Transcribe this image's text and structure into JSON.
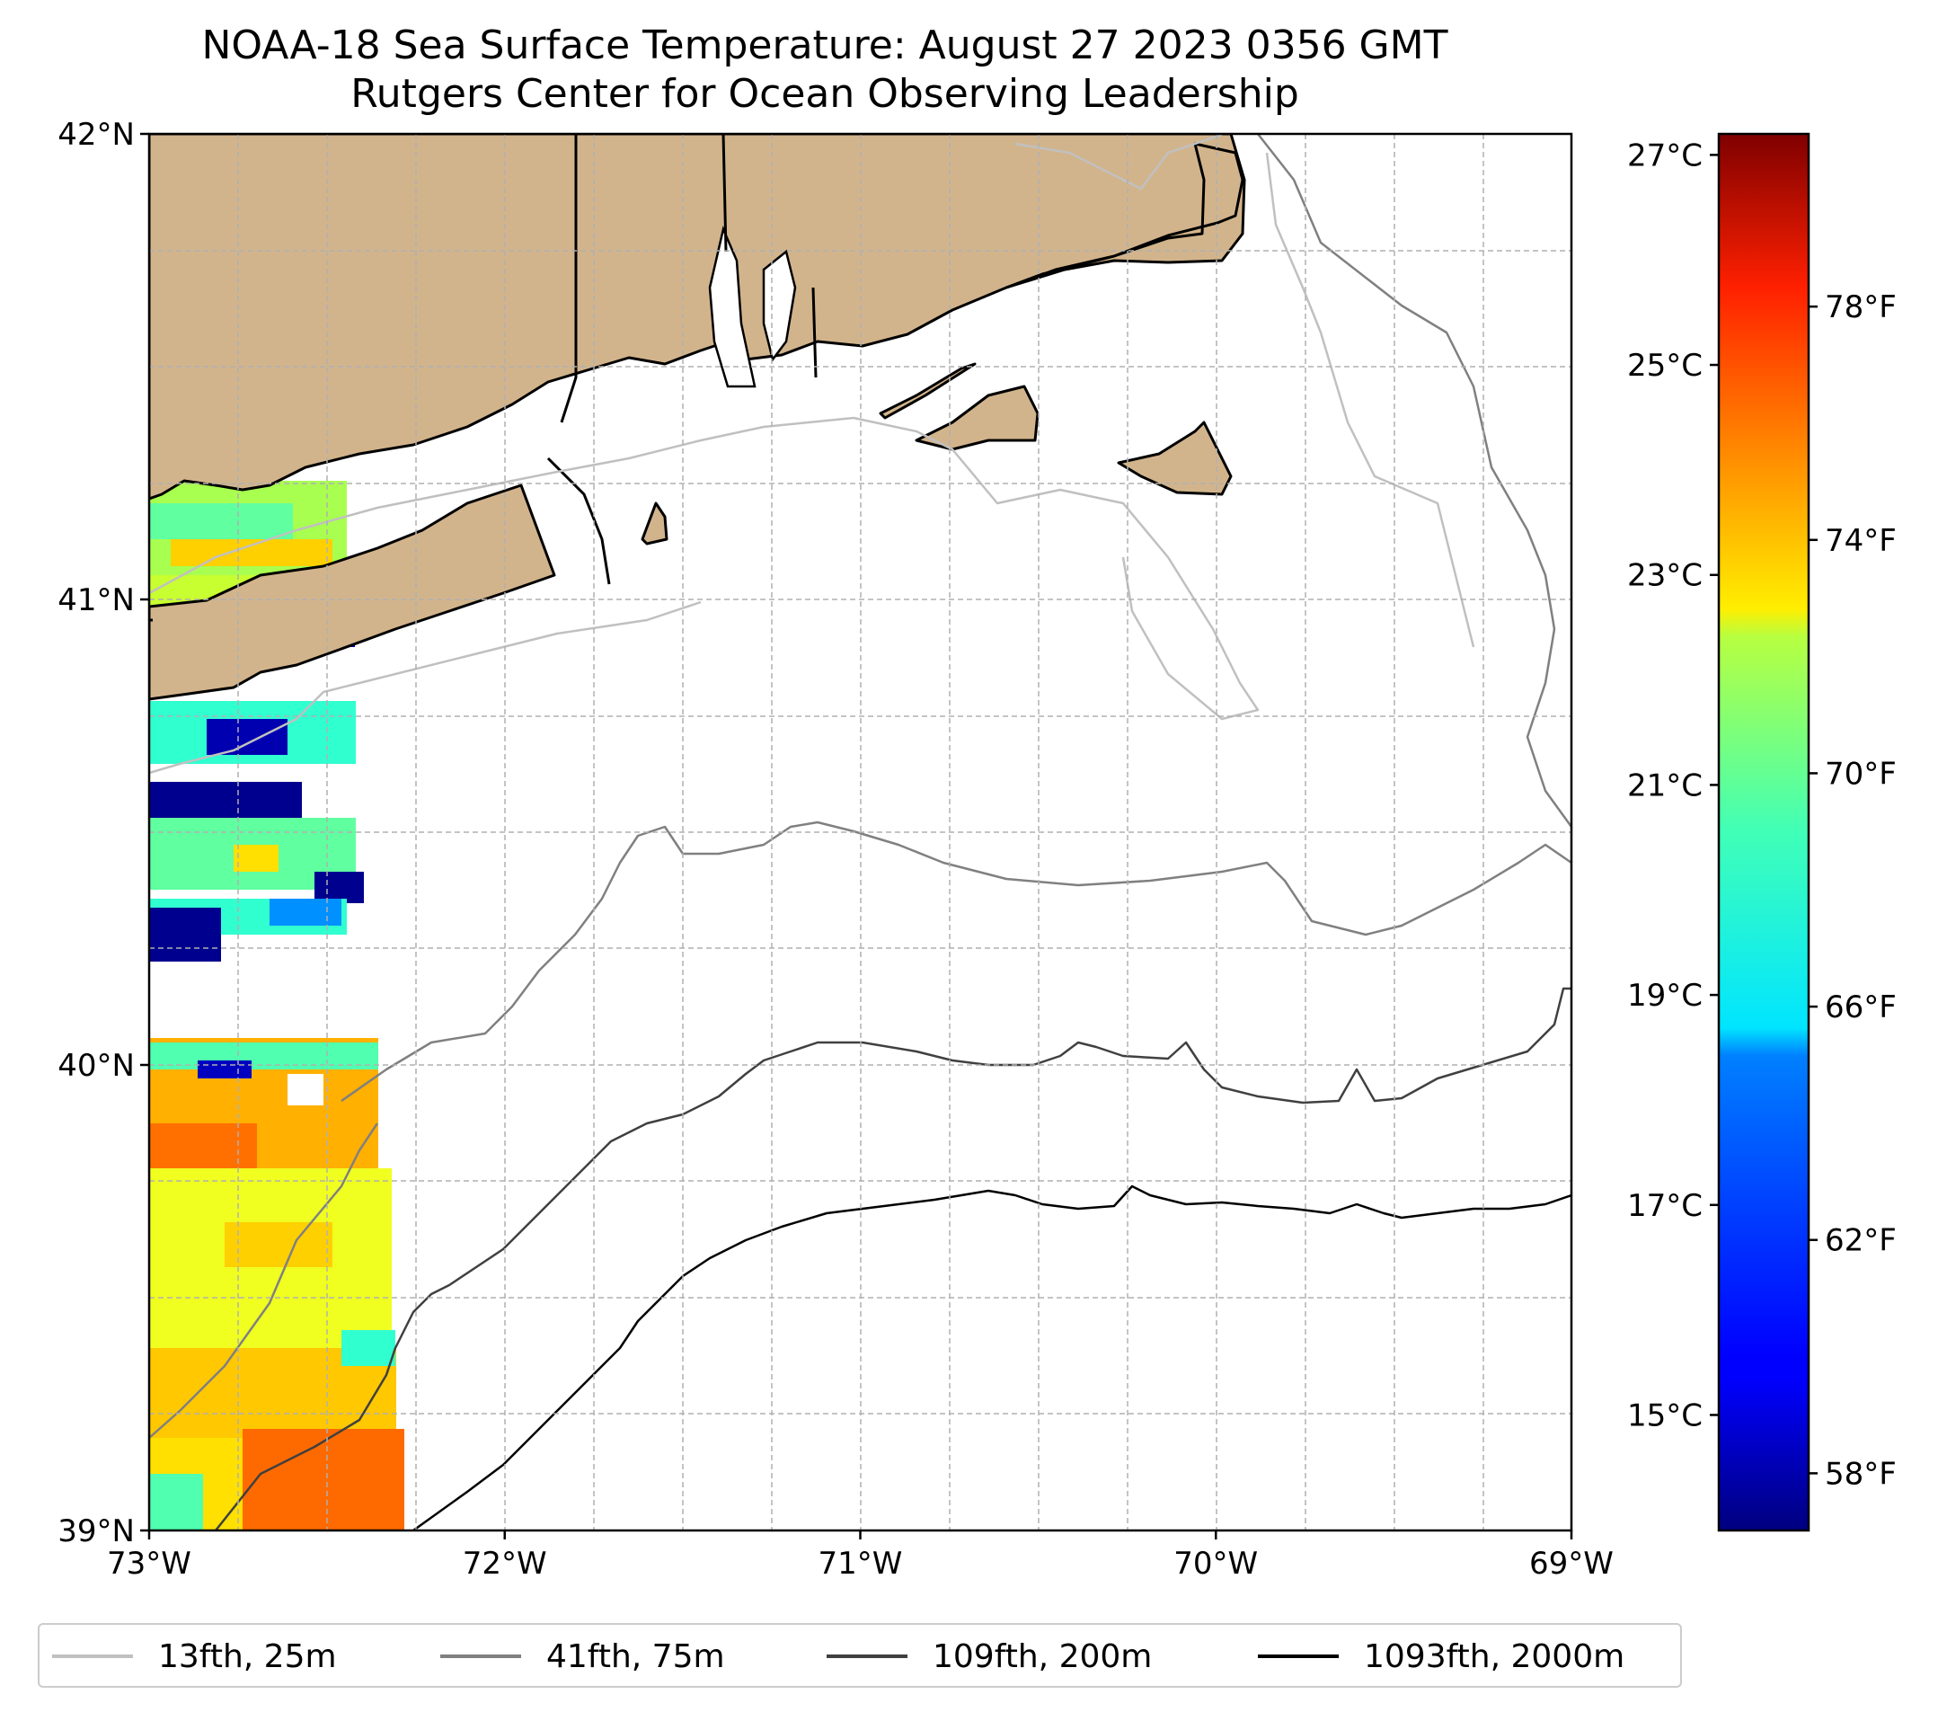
{
  "title": {
    "line1": "NOAA-18 Sea Surface Temperature: August 27 2023 0356 GMT",
    "line2": "Rutgers Center for Ocean Observing Leadership"
  },
  "axes": {
    "x_ticks": [
      "73°W",
      "72°W",
      "71°W",
      "70°W",
      "69°W"
    ],
    "y_ticks": [
      "39°N",
      "40°N",
      "41°N",
      "42°N"
    ],
    "lon_range": [
      -73,
      -69
    ],
    "lat_range": [
      39,
      42
    ],
    "grid": true
  },
  "colorbar": {
    "colormap": "jet",
    "celsius_labels": [
      "15°C",
      "17°C",
      "19°C",
      "21°C",
      "23°C",
      "25°C",
      "27°C"
    ],
    "celsius_values": [
      15,
      17,
      19,
      21,
      23,
      25,
      27
    ],
    "fahrenheit_labels": [
      "58°F",
      "62°F",
      "66°F",
      "70°F",
      "74°F",
      "78°F"
    ],
    "fahrenheit_values": [
      58,
      62,
      66,
      70,
      74,
      78
    ],
    "range_celsius": [
      13.9,
      27.2
    ]
  },
  "legend": {
    "items": [
      {
        "label": "13fth, 25m",
        "color": "#c0c0c0"
      },
      {
        "label": "41fth, 75m",
        "color": "#808080"
      },
      {
        "label": "109fth, 200m",
        "color": "#404040"
      },
      {
        "label": "1093fth, 2000m",
        "color": "#000000"
      }
    ]
  },
  "colors": {
    "land": "#d2b48c",
    "grid": "#b0b0b0"
  }
}
